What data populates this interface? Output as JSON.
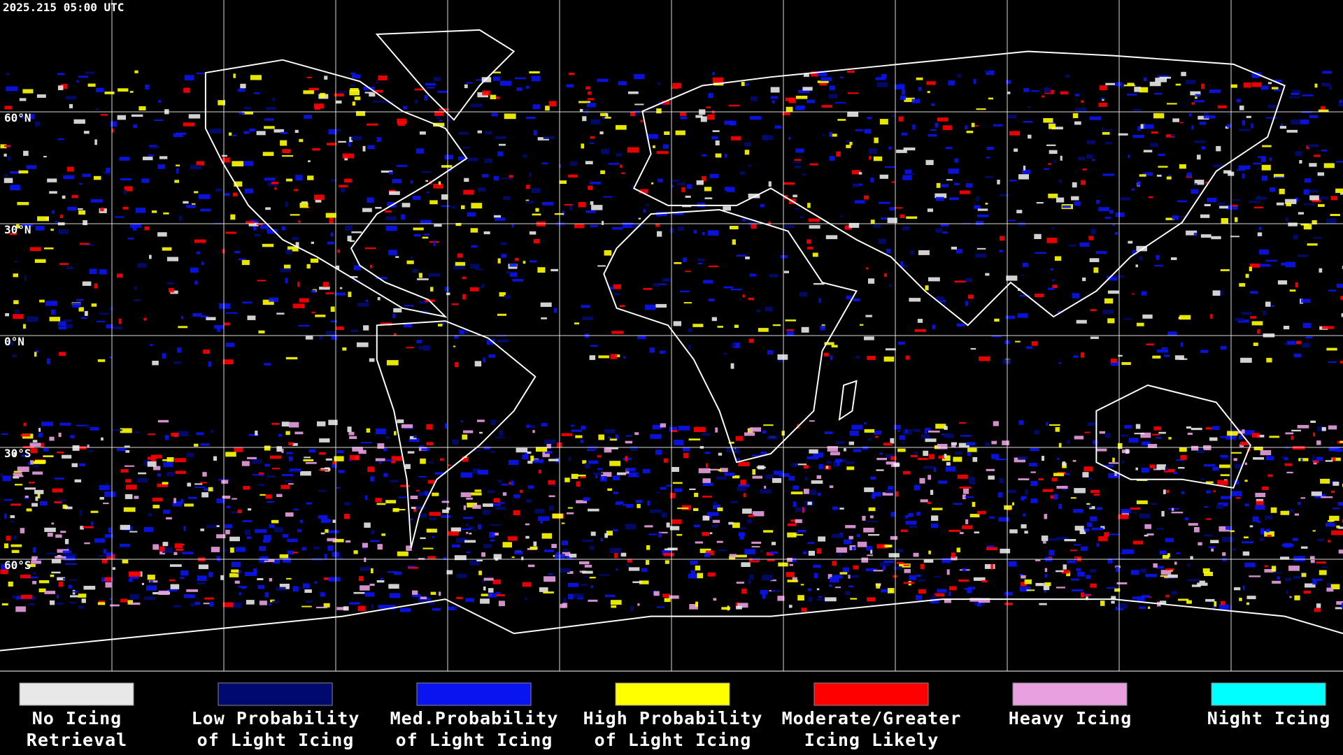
{
  "header": {
    "timestamp": "2025.215 05:00 UTC"
  },
  "map": {
    "latitude_labels": [
      "60°N",
      "30°N",
      "0°N",
      "30°S",
      "60°S"
    ]
  },
  "legend": {
    "items": [
      {
        "label": [
          "No Icing",
          "Retrieval"
        ],
        "color": "#e8e8e8"
      },
      {
        "label": [
          "Low Probability",
          "of Light Icing"
        ],
        "color": "#000a6e"
      },
      {
        "label": [
          "Med.Probability",
          "of Light Icing"
        ],
        "color": "#0a14f0"
      },
      {
        "label": [
          "High Probability",
          "of Light Icing"
        ],
        "color": "#ffff00"
      },
      {
        "label": [
          "Moderate/Greater",
          "Icing Likely"
        ],
        "color": "#ff0000"
      },
      {
        "label": [
          "Heavy Icing"
        ],
        "color": "#e8a0e0"
      },
      {
        "label": [
          "Night Icing"
        ],
        "color": "#00ffff"
      }
    ]
  }
}
